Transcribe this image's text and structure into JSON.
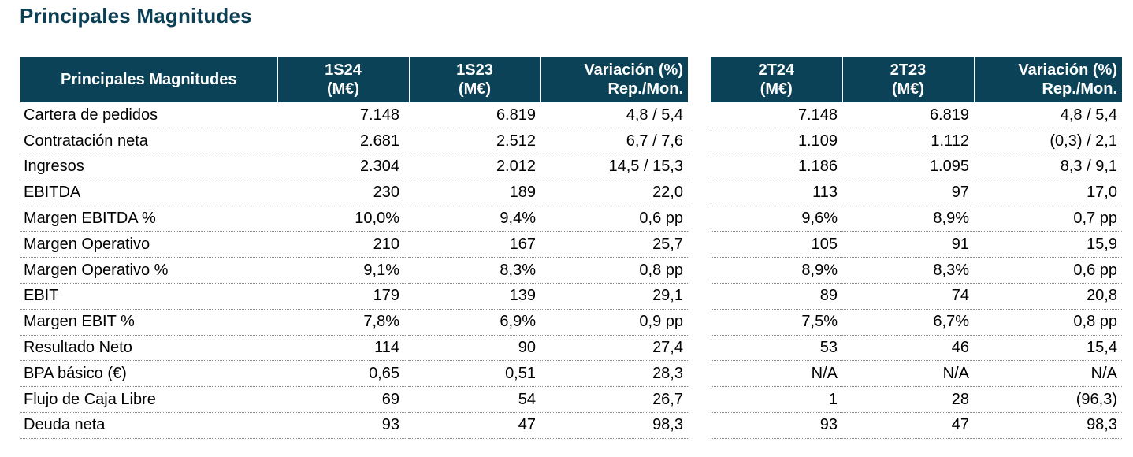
{
  "title": "Principales Magnitudes",
  "table_left": {
    "header": {
      "label": "Principales Magnitudes",
      "col1": [
        "1S24",
        "(M€)"
      ],
      "col2": [
        "1S23",
        "(M€)"
      ],
      "col3": [
        "Variación (%)",
        "Rep./Mon."
      ]
    },
    "rows": [
      {
        "label": "Cartera de pedidos",
        "v1": "7.148",
        "v2": "6.819",
        "v3": "4,8 / 5,4"
      },
      {
        "label": "Contratación neta",
        "v1": "2.681",
        "v2": "2.512",
        "v3": "6,7 / 7,6"
      },
      {
        "label": "Ingresos",
        "v1": "2.304",
        "v2": "2.012",
        "v3": "14,5 / 15,3"
      },
      {
        "label": "EBITDA",
        "v1": "230",
        "v2": "189",
        "v3": "22,0"
      },
      {
        "label": "Margen EBITDA %",
        "v1": "10,0%",
        "v2": "9,4%",
        "v3": "0,6 pp"
      },
      {
        "label": "Margen Operativo",
        "v1": "210",
        "v2": "167",
        "v3": "25,7"
      },
      {
        "label": "Margen Operativo %",
        "v1": "9,1%",
        "v2": "8,3%",
        "v3": "0,8 pp"
      },
      {
        "label": "EBIT",
        "v1": "179",
        "v2": "139",
        "v3": "29,1"
      },
      {
        "label": "Margen EBIT %",
        "v1": "7,8%",
        "v2": "6,9%",
        "v3": "0,9 pp"
      },
      {
        "label": "Resultado Neto",
        "v1": "114",
        "v2": "90",
        "v3": "27,4"
      },
      {
        "label": "BPA básico (€)",
        "v1": "0,65",
        "v2": "0,51",
        "v3": "28,3"
      },
      {
        "label": "Flujo de Caja Libre",
        "v1": "69",
        "v2": "54",
        "v3": "26,7"
      },
      {
        "label": "Deuda neta",
        "v1": "93",
        "v2": "47",
        "v3": "98,3"
      }
    ]
  },
  "table_right": {
    "header": {
      "col1": [
        "2T24",
        "(M€)"
      ],
      "col2": [
        "2T23",
        "(M€)"
      ],
      "col3": [
        "Variación (%)",
        "Rep./Mon."
      ]
    },
    "rows": [
      {
        "v1": "7.148",
        "v2": "6.819",
        "v3": "4,8 / 5,4"
      },
      {
        "v1": "1.109",
        "v2": "1.112",
        "v3": "(0,3) / 2,1"
      },
      {
        "v1": "1.186",
        "v2": "1.095",
        "v3": "8,3 / 9,1"
      },
      {
        "v1": "113",
        "v2": "97",
        "v3": "17,0"
      },
      {
        "v1": "9,6%",
        "v2": "8,9%",
        "v3": "0,7 pp"
      },
      {
        "v1": "105",
        "v2": "91",
        "v3": "15,9"
      },
      {
        "v1": "8,9%",
        "v2": "8,3%",
        "v3": "0,6 pp"
      },
      {
        "v1": "89",
        "v2": "74",
        "v3": "20,8"
      },
      {
        "v1": "7,5%",
        "v2": "6,7%",
        "v3": "0,8 pp"
      },
      {
        "v1": "53",
        "v2": "46",
        "v3": "15,4"
      },
      {
        "v1": "N/A",
        "v2": "N/A",
        "v3": "N/A"
      },
      {
        "v1": "1",
        "v2": "28",
        "v3": "(96,3)"
      },
      {
        "v1": "93",
        "v2": "47",
        "v3": "98,3"
      }
    ]
  },
  "colors": {
    "title": "#0b3f55",
    "header_bg": "#0c4257",
    "header_text": "#ffffff"
  }
}
